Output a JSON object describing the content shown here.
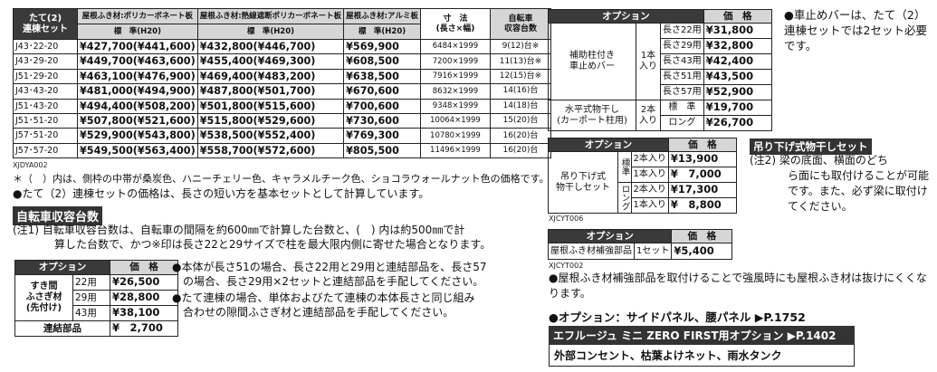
{
  "main_table": {
    "headers": {
      "unit": "たて(2)\n連棟セット",
      "poly": "屋根ふき材:ポリカーボネート板",
      "heat": "屋根ふき材:熱線遮断ポリカーボネート板",
      "alum": "屋根ふき材:アルミ板",
      "std": "標　準(H20)",
      "dim": "寸　法\n(長さ×幅)",
      "cap": "自転車\n収容台数"
    },
    "rows": [
      {
        "code": "J43･22-20",
        "poly": "¥427,700(¥441,600)",
        "heat": "¥432,800(¥446,700)",
        "alum": "¥569,900",
        "dim": "6484×1999",
        "cap": "9(12)台※"
      },
      {
        "code": "J43･29-20",
        "poly": "¥449,700(¥463,600)",
        "heat": "¥455,400(¥469,300)",
        "alum": "¥608,500",
        "dim": "7200×1999",
        "cap": "11(13)台※"
      },
      {
        "code": "J51･29-20",
        "poly": "¥463,100(¥476,900)",
        "heat": "¥469,400(¥483,200)",
        "alum": "¥638,500",
        "dim": "7916×1999",
        "cap": "12(15)台※"
      },
      {
        "code": "J43･43-20",
        "poly": "¥481,000(¥494,900)",
        "heat": "¥487,800(¥501,700)",
        "alum": "¥670,600",
        "dim": "8632×1999",
        "cap": "14(16)台"
      },
      {
        "code": "J51･43-20",
        "poly": "¥494,400(¥508,200)",
        "heat": "¥501,800(¥515,600)",
        "alum": "¥700,600",
        "dim": "9348×1999",
        "cap": "14(18)台"
      },
      {
        "code": "J51･51-20",
        "poly": "¥507,800(¥521,600)",
        "heat": "¥515,800(¥529,600)",
        "alum": "¥730,600",
        "dim": "10064×1999",
        "cap": "15(20)台"
      },
      {
        "code": "J57･51-20",
        "poly": "¥529,900(¥543,800)",
        "heat": "¥538,500(¥552,400)",
        "alum": "¥769,300",
        "dim": "10780×1999",
        "cap": "16(20)台"
      },
      {
        "code": "J57･57-20",
        "poly": "¥549,500(¥563,400)",
        "heat": "¥558,700(¥572,600)",
        "alum": "¥805,500",
        "dim": "11496×1999",
        "cap": "16(20)台"
      }
    ],
    "code_tag": "XJDYA002"
  },
  "notes": {
    "n1": "＊（　）内は、側枠の中帯が桑炭色、ハニーチェリー色、キャラメルチーク色、ショコラウォールナット色の価格です。",
    "n2": "●たて（2）連棟セットの価格は、長さの短い方を基本セットとして計算しています。",
    "bike_banner": "自転車収容台数",
    "bike1": "(注1) 自転車収容台数は、自転車の間隔を約600㎜で計算した台数と、(　) 内は約500㎜で計",
    "bike2": "算した台数で、かつ※印は長さ22と29サイズで柱を最大限内側に寄せた場合となります。"
  },
  "opt1": {
    "h_opt": "オプション",
    "h_price": "価　格",
    "name": "すき間\nふさぎ材\n(先付け)",
    "rows": [
      {
        "len": "22用",
        "price": "¥26,500"
      },
      {
        "len": "29用",
        "price": "¥28,800"
      },
      {
        "len": "43用",
        "price": "¥38,100"
      }
    ],
    "joint": "連結部品",
    "joint_price": "¥　2,700",
    "b1": "●本体が長さ51の場合、長さ22用と29用と連結部品を、長さ57",
    "b1b": "　の場合、長さ29用×2セットと連結部品を手配してください。",
    "b2": "●たて連棟の場合、単体およびたて連棟の本体長さと同じ組み",
    "b2b": "　合わせの隙間ふさぎ材と連結部品を手配してください。"
  },
  "opt2": {
    "h_opt": "オプション",
    "h_price": "価　格",
    "group1": "補助柱付き\n車止めバー",
    "unit1": "1本\n入り",
    "rows1": [
      {
        "len": "長さ22用",
        "price": "¥31,800"
      },
      {
        "len": "長さ29用",
        "price": "¥32,800"
      },
      {
        "len": "長さ43用",
        "price": "¥42,400"
      },
      {
        "len": "長さ51用",
        "price": "¥43,500"
      },
      {
        "len": "長さ57用",
        "price": "¥52,900"
      }
    ],
    "group2": "水平式物干し\n(カーポート柱用)",
    "unit2": "2本\n入り",
    "rows2": [
      {
        "len": "標　準",
        "price": "¥19,700"
      },
      {
        "len": "ロング",
        "price": "¥26,700"
      }
    ],
    "note": "●車止めバーは、たて（2）連棟セットでは2セット必要です。"
  },
  "opt3": {
    "h_opt": "オプション",
    "h_price": "価　格",
    "name": "吊り下げ式\n物干しセット",
    "std": "標準",
    "long": "ロング",
    "rows": [
      {
        "qty": "2本入り",
        "price": "¥13,900"
      },
      {
        "qty": "1本入り",
        "price": "¥　7,000"
      },
      {
        "qty": "2本入り",
        "price": "¥17,300"
      },
      {
        "qty": "1本入り",
        "price": "¥　8,800"
      }
    ],
    "tag": "XJCYT006",
    "banner": "吊り下げ式物干しセット",
    "note1": "(注2) 梁の底面、横面のどち",
    "note2": "ら面にも取付けることが可能です。また、必ず梁に取付けてください。"
  },
  "opt4": {
    "h_opt": "オプション",
    "h_price": "価　格",
    "name": "屋根ふき材補強部品",
    "qty": "1セット",
    "price": "¥5,400",
    "tag": "XJCYT002",
    "note": "●屋根ふき材補強部品を取付けることで強風時にも屋根ふき材は抜けにくくなります。",
    "option_line": "●オプション：サイドパネル、腰パネル ▶P.1752",
    "banner": "エフルージュ ミニ ZERO FIRST用オプション ▶P.1402",
    "list": "外部コンセント、枯葉よけネット、雨水タンク"
  }
}
